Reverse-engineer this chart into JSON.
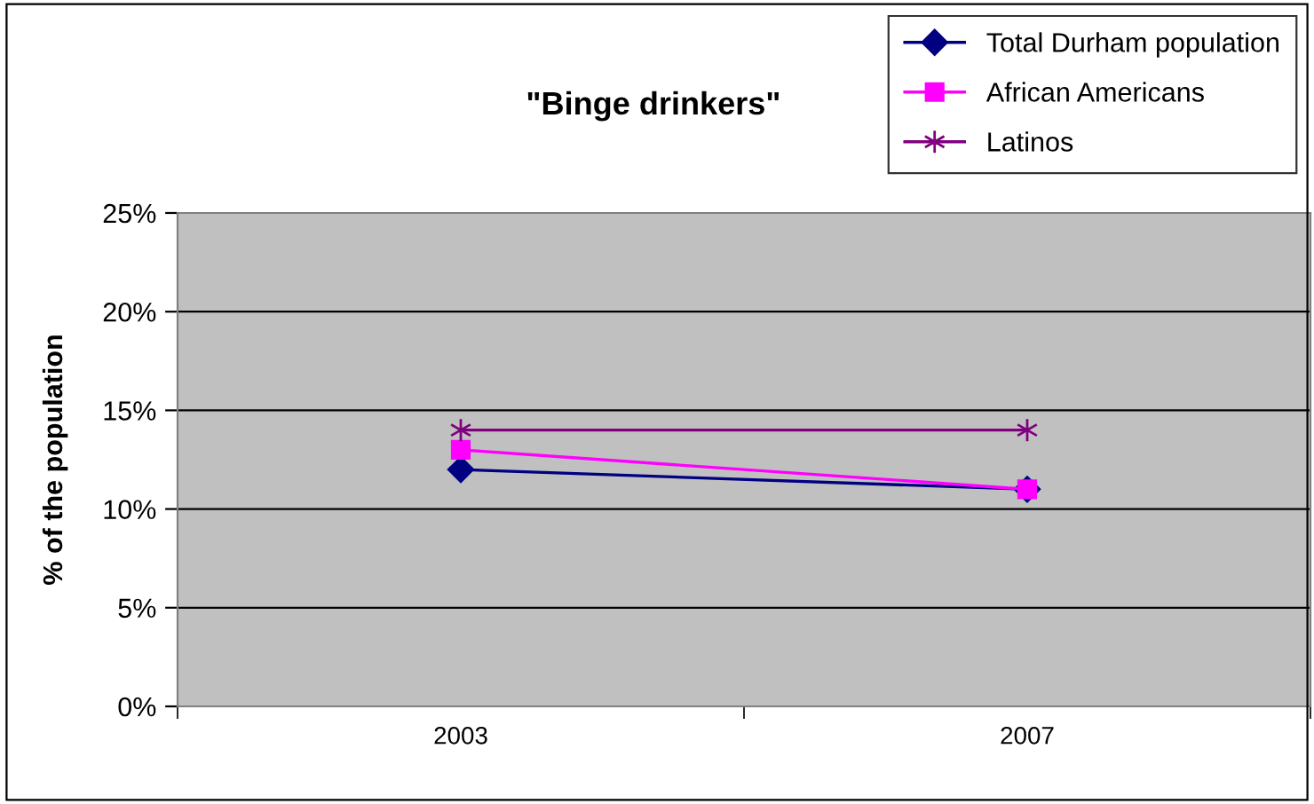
{
  "chart_data": {
    "type": "line",
    "title": "\"Binge drinkers\"",
    "ylabel": "% of the population",
    "categories": [
      "2003",
      "2007"
    ],
    "series": [
      {
        "name": "Total Durham population",
        "color": "#000080",
        "values": [
          12,
          11
        ],
        "marker": "diamond"
      },
      {
        "name": "African Americans",
        "color": "#ff00ff",
        "values": [
          13,
          11
        ],
        "marker": "square"
      },
      {
        "name": "Latinos",
        "color": "#800080",
        "values": [
          14,
          14
        ],
        "marker": "cross"
      }
    ],
    "ylim": [
      0,
      25
    ],
    "yticks": [
      {
        "value": 0,
        "label": "0%"
      },
      {
        "value": 5,
        "label": "5%"
      },
      {
        "value": 10,
        "label": "10%"
      },
      {
        "value": 15,
        "label": "15%"
      },
      {
        "value": 20,
        "label": "20%"
      },
      {
        "value": 25,
        "label": "25%"
      }
    ],
    "grid": "y",
    "legend": "top right",
    "line_style": "solid"
  }
}
